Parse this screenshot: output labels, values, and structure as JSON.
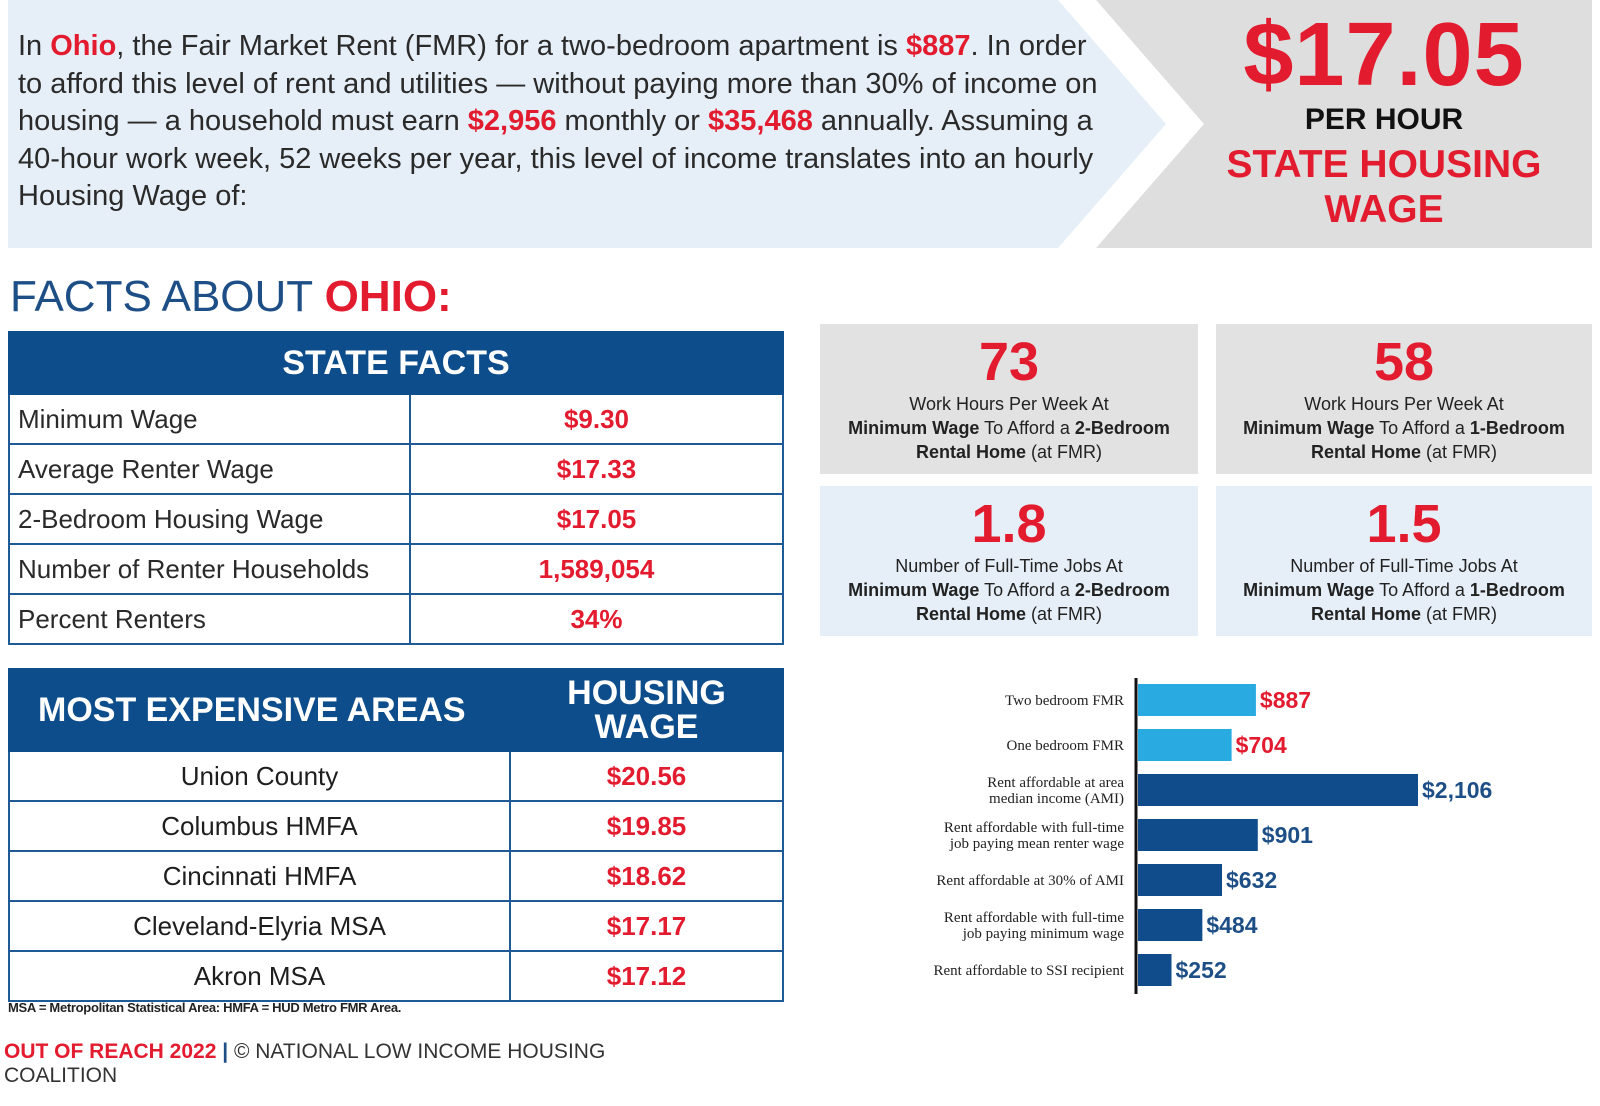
{
  "intro": {
    "t1": "In ",
    "state": "Ohio",
    "t2": ", the Fair Market Rent (FMR) for a two-bedroom apartment is ",
    "fmr": "$887",
    "t3": ". In order to afford this level of rent and utilities — without paying more than 30% of income on housing — a household must earn ",
    "monthly": "$2,956",
    "t4": " monthly or ",
    "annual": "$35,468",
    "t5": " annually. Assuming a 40-hour work week, 52 weeks per year, this level of income translates into an hourly Housing Wage of:"
  },
  "housing_wage": {
    "amount": "$17.05",
    "unit": "PER HOUR",
    "label": "STATE HOUSING WAGE"
  },
  "facts_heading": {
    "prefix": "FACTS ABOUT ",
    "state": "OHIO:"
  },
  "state_facts": {
    "title": "STATE FACTS",
    "rows": [
      {
        "label": "Minimum Wage",
        "value": "$9.30"
      },
      {
        "label": "Average Renter Wage",
        "value": "$17.33"
      },
      {
        "label": "2-Bedroom Housing Wage",
        "value": "$17.05"
      },
      {
        "label": "Number of Renter Households",
        "value": "1,589,054"
      },
      {
        "label": "Percent Renters",
        "value": "34%"
      }
    ]
  },
  "expensive_areas": {
    "col1": "MOST EXPENSIVE AREAS",
    "col2": "HOUSING WAGE",
    "rows": [
      {
        "area": "Union County",
        "wage": "$20.56"
      },
      {
        "area": "Columbus HMFA",
        "wage": "$19.85"
      },
      {
        "area": "Cincinnati HMFA",
        "wage": "$18.62"
      },
      {
        "area": "Cleveland-Elyria MSA",
        "wage": "$17.17"
      },
      {
        "area": "Akron MSA",
        "wage": "$17.12"
      }
    ]
  },
  "footnote": "MSA = Metropolitan Statistical Area: HMFA = HUD Metro FMR Area.",
  "credit": {
    "publication": "OUT OF REACH 2022",
    "separator": " | ",
    "org": "© NATIONAL LOW INCOME HOUSING COALITION"
  },
  "tiles": [
    {
      "value": "73",
      "line1": "Work Hours Per Week At",
      "bold1": "Minimum Wage",
      "mid": " To Afford a ",
      "bold2": "2-Bedroom Rental Home",
      "tail": " (at FMR)"
    },
    {
      "value": "58",
      "line1": "Work Hours Per Week At",
      "bold1": "Minimum Wage",
      "mid": " To Afford a ",
      "bold2": "1-Bedroom Rental Home",
      "tail": " (at FMR)"
    },
    {
      "value": "1.8",
      "line1": "Number of Full-Time Jobs At",
      "bold1": "Minimum Wage",
      "mid": " To Afford a ",
      "bold2": "2-Bedroom Rental Home",
      "tail": " (at FMR)"
    },
    {
      "value": "1.5",
      "line1": "Number of Full-Time Jobs At",
      "bold1": "Minimum Wage",
      "mid": " To Afford a ",
      "bold2": "1-Bedroom Rental Home",
      "tail": " (at FMR)"
    }
  ],
  "colors": {
    "red": "#e31b2f",
    "navy": "#0d4d8b",
    "light_blue": "#29aae1",
    "dark_bar": "#104c8c"
  },
  "chart_data": {
    "type": "bar",
    "orientation": "horizontal",
    "title": "",
    "xlabel": "",
    "ylabel": "",
    "categories": [
      [
        "Two bedroom FMR"
      ],
      [
        "One bedroom FMR"
      ],
      [
        "Rent affordable at area",
        "median income (AMI)"
      ],
      [
        "Rent affordable with full-time",
        "job paying mean renter wage"
      ],
      [
        "Rent affordable at 30% of AMI"
      ],
      [
        "Rent affordable with full-time",
        "job paying minimum wage"
      ],
      [
        "Rent affordable to SSI recipient"
      ]
    ],
    "values": [
      887,
      704,
      2106,
      901,
      632,
      484,
      252
    ],
    "value_labels": [
      "$887",
      "$704",
      "$2,106",
      "$901",
      "$632",
      "$484",
      "$252"
    ],
    "bar_colors": [
      "#29aae1",
      "#29aae1",
      "#104c8c",
      "#104c8c",
      "#104c8c",
      "#104c8c",
      "#104c8c"
    ],
    "label_colors": [
      "#e31b2f",
      "#e31b2f",
      "#1d4f86",
      "#1d4f86",
      "#1d4f86",
      "#1d4f86",
      "#1d4f86"
    ],
    "xlim": [
      0,
      2106
    ]
  }
}
